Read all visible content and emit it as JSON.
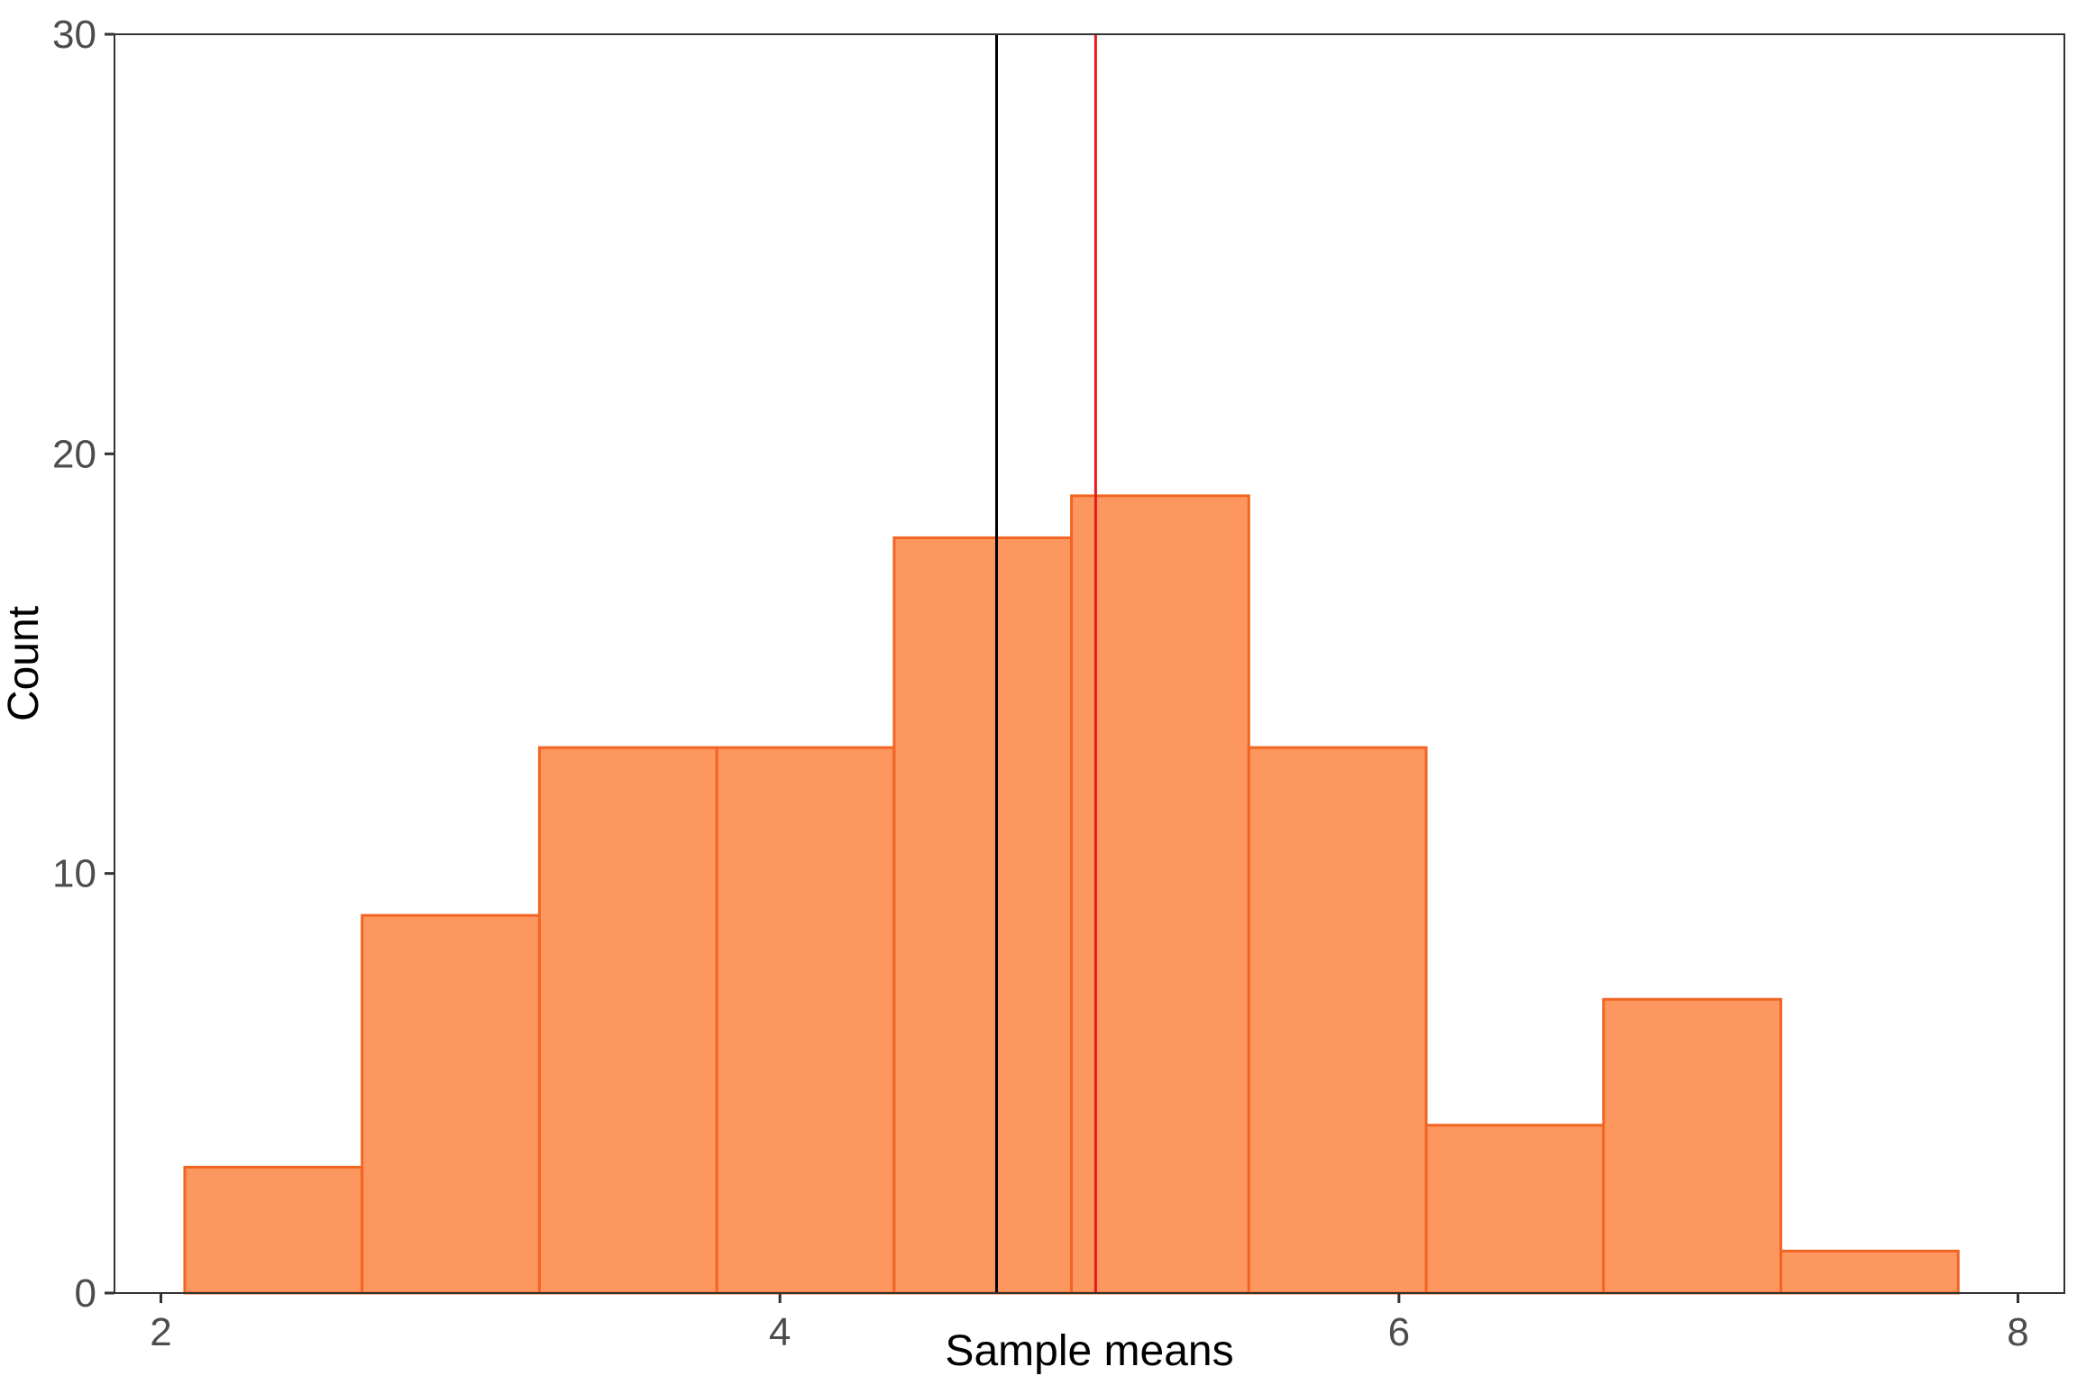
{
  "chart_data": {
    "type": "histogram",
    "title": "",
    "xlabel": "Sample means",
    "ylabel": "Count",
    "xlim": [
      1.85,
      8.15
    ],
    "ylim": [
      0,
      30
    ],
    "x_ticks": [
      "2",
      "4",
      "6",
      "8"
    ],
    "y_ticks": [
      "0",
      "10",
      "20",
      "30"
    ],
    "bin_width": 0.573,
    "bins": [
      {
        "start": 2.077,
        "end": 2.65,
        "count": 3
      },
      {
        "start": 2.65,
        "end": 3.223,
        "count": 9
      },
      {
        "start": 3.223,
        "end": 3.796,
        "count": 13
      },
      {
        "start": 3.796,
        "end": 4.369,
        "count": 13
      },
      {
        "start": 4.369,
        "end": 4.942,
        "count": 18
      },
      {
        "start": 4.942,
        "end": 5.515,
        "count": 19
      },
      {
        "start": 5.515,
        "end": 6.088,
        "count": 13
      },
      {
        "start": 6.088,
        "end": 6.661,
        "count": 4
      },
      {
        "start": 6.661,
        "end": 7.234,
        "count": 7
      },
      {
        "start": 7.234,
        "end": 7.807,
        "count": 1
      }
    ],
    "vlines": [
      {
        "x": 4.7,
        "color": "#000000"
      },
      {
        "x": 5.02,
        "color": "#e41a1c"
      }
    ],
    "grid": false,
    "colors": {
      "bar_fill": "#fc9760",
      "bar_stroke": "#f26522",
      "axis": "#333333"
    }
  }
}
